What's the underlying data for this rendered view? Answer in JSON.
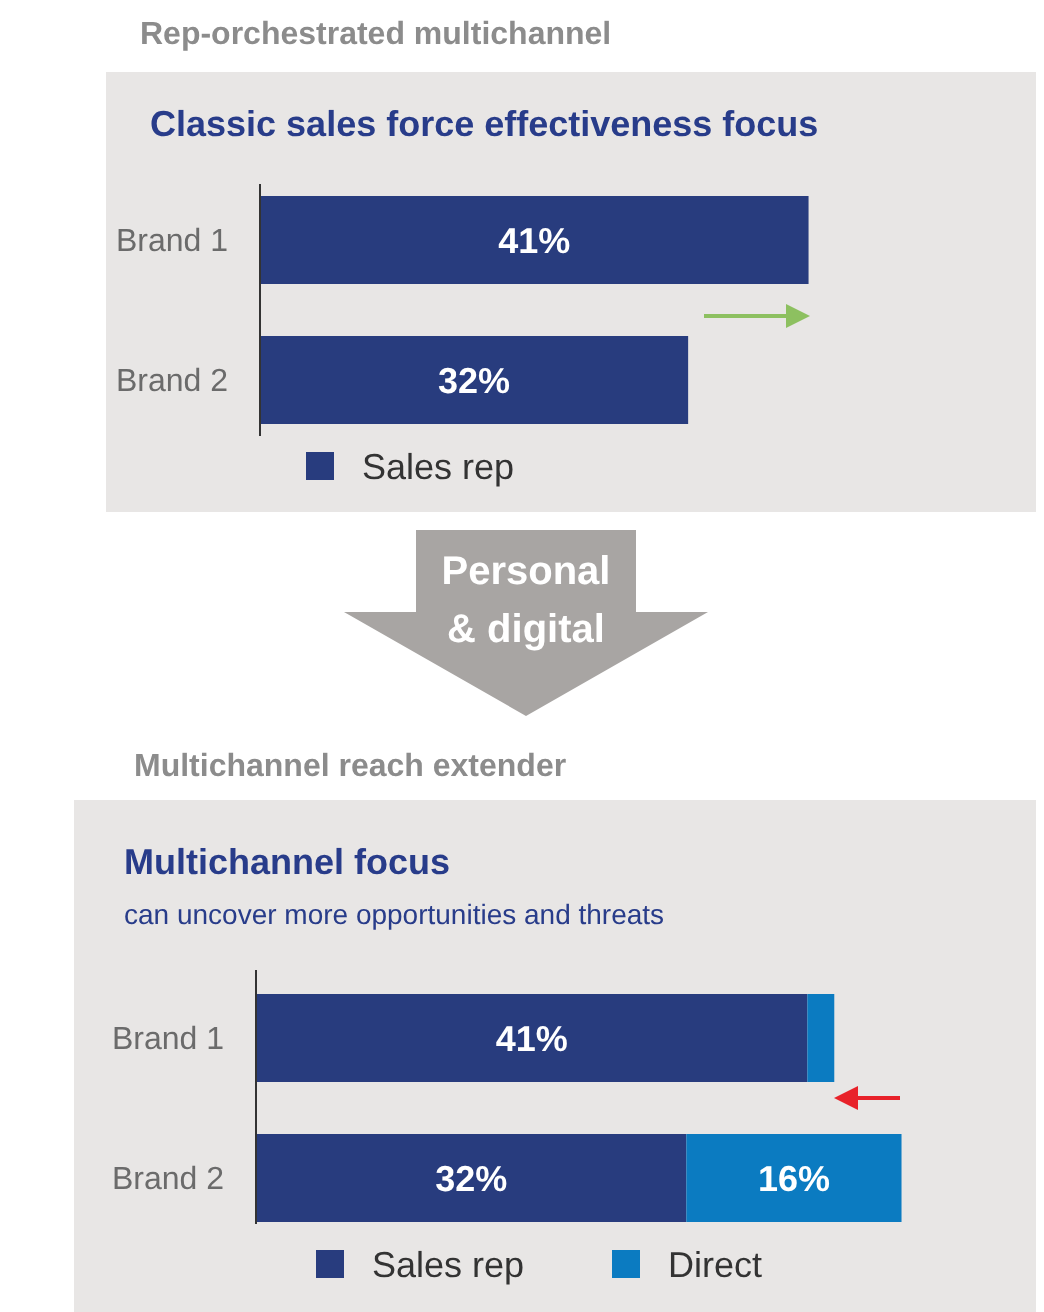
{
  "chart_data": [
    {
      "type": "bar",
      "orientation": "horizontal",
      "title": "Classic sales force effectiveness focus",
      "annotations": [
        "Rep-orchestrated multichannel",
        "Personal & digital"
      ],
      "categories": [
        "Brand 1",
        "Brand 2"
      ],
      "xlim": [
        0,
        58
      ],
      "legend": "bottom",
      "tick_labels": "y",
      "series": [
        {
          "name": "Sales rep",
          "color": "#283c7e",
          "values": [
            41,
            32
          ],
          "value_labels": [
            "41%",
            "32%"
          ]
        }
      ]
    },
    {
      "type": "bar",
      "orientation": "horizontal",
      "stacked": true,
      "title": "Multichannel focus",
      "subtitle": "can uncover more opportunities and threats",
      "annotations": [
        "Multichannel reach extender"
      ],
      "categories": [
        "Brand 1",
        "Brand 2"
      ],
      "xlim": [
        0,
        58
      ],
      "legend": "bottom",
      "tick_labels": "y",
      "series": [
        {
          "name": "Sales rep",
          "color": "#283c7e",
          "values": [
            41,
            32
          ],
          "value_labels": [
            "41%",
            "32%"
          ]
        },
        {
          "name": "Direct",
          "color": "#0b7bc1",
          "values": [
            2,
            16
          ],
          "value_labels": [
            null,
            "16%"
          ]
        }
      ]
    }
  ]
}
